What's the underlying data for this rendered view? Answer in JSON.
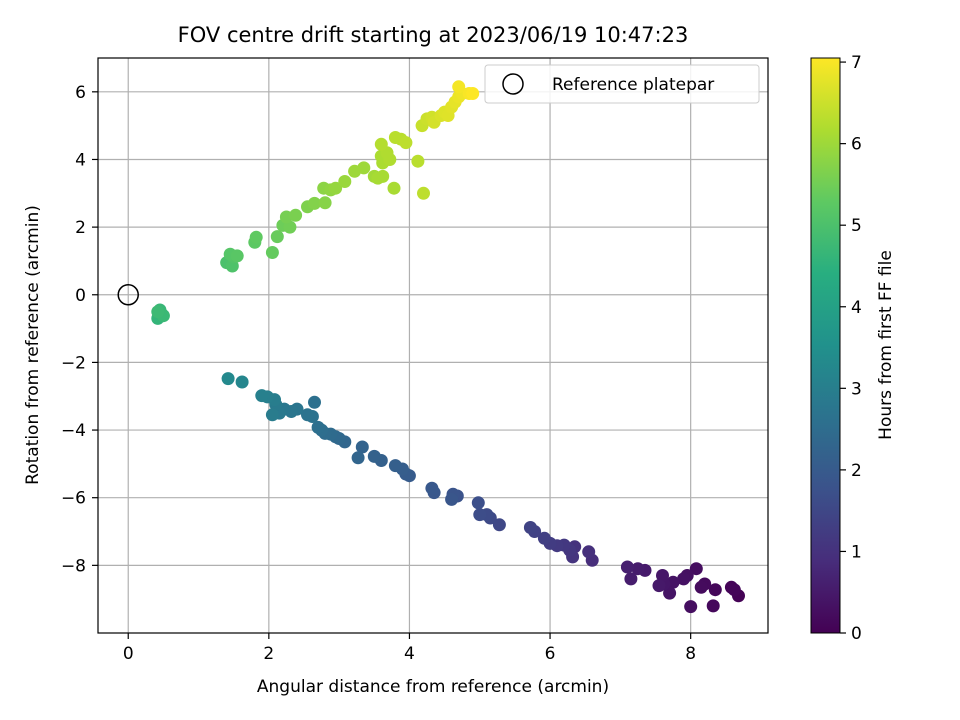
{
  "chart_data": {
    "type": "scatter",
    "title": "FOV centre drift starting at 2023/06/19 10:47:23",
    "xlabel": "Angular distance from reference (arcmin)",
    "ylabel": "Rotation from reference (arcmin)",
    "xlim": [
      -0.43,
      9.1
    ],
    "ylim": [
      -10.0,
      7.0
    ],
    "x_ticks": [
      0,
      2,
      4,
      6,
      8
    ],
    "y_ticks": [
      -8,
      -6,
      -4,
      -2,
      0,
      2,
      4,
      6
    ],
    "grid": true,
    "legend": {
      "position": "top-right",
      "entries": [
        "Reference platepar"
      ]
    },
    "reference_point": {
      "x": 0,
      "y": 0
    },
    "colorbar": {
      "label": "Hours from first FF file",
      "colormap": "viridis",
      "range": [
        0,
        7.05
      ],
      "ticks": [
        0,
        1,
        2,
        3,
        4,
        5,
        6,
        7
      ]
    },
    "points": [
      [
        8.68,
        -8.9,
        0.03
      ],
      [
        8.58,
        -8.65,
        0.06
      ],
      [
        8.62,
        -8.72,
        0.09
      ],
      [
        8.35,
        -8.72,
        0.12
      ],
      [
        8.32,
        -9.2,
        0.15
      ],
      [
        8.2,
        -8.55,
        0.18
      ],
      [
        8.15,
        -8.65,
        0.21
      ],
      [
        8.08,
        -8.1,
        0.24
      ],
      [
        8.0,
        -9.22,
        0.27
      ],
      [
        7.95,
        -8.3,
        0.3
      ],
      [
        7.9,
        -8.4,
        0.33
      ],
      [
        7.75,
        -8.5,
        0.36
      ],
      [
        7.7,
        -8.82,
        0.39
      ],
      [
        7.62,
        -8.55,
        0.42
      ],
      [
        7.6,
        -8.3,
        0.45
      ],
      [
        7.55,
        -8.6,
        0.48
      ],
      [
        7.35,
        -8.15,
        0.51
      ],
      [
        7.25,
        -8.1,
        0.54
      ],
      [
        7.15,
        -8.4,
        0.57
      ],
      [
        7.1,
        -8.05,
        0.6
      ],
      [
        6.6,
        -7.85,
        0.9
      ],
      [
        6.55,
        -7.6,
        0.95
      ],
      [
        6.35,
        -7.45,
        1.0
      ],
      [
        6.32,
        -7.75,
        1.05
      ],
      [
        6.28,
        -7.55,
        1.1
      ],
      [
        6.2,
        -7.4,
        1.15
      ],
      [
        6.1,
        -7.42,
        1.2
      ],
      [
        6.0,
        -7.35,
        1.25
      ],
      [
        5.92,
        -7.2,
        1.3
      ],
      [
        5.78,
        -7.0,
        1.35
      ],
      [
        5.72,
        -6.88,
        1.4
      ],
      [
        5.28,
        -6.8,
        1.5
      ],
      [
        5.15,
        -6.6,
        1.55
      ],
      [
        5.1,
        -6.5,
        1.6
      ],
      [
        5.0,
        -6.5,
        1.65
      ],
      [
        4.98,
        -6.15,
        1.7
      ],
      [
        4.68,
        -5.95,
        1.78
      ],
      [
        4.62,
        -5.9,
        1.82
      ],
      [
        4.6,
        -6.05,
        1.86
      ],
      [
        4.35,
        -5.85,
        1.9
      ],
      [
        4.32,
        -5.72,
        1.94
      ],
      [
        4.0,
        -5.35,
        2.0
      ],
      [
        3.95,
        -5.3,
        2.04
      ],
      [
        3.9,
        -5.15,
        2.08
      ],
      [
        3.8,
        -5.05,
        2.12
      ],
      [
        3.6,
        -4.9,
        2.16
      ],
      [
        3.5,
        -4.78,
        2.2
      ],
      [
        3.33,
        -4.5,
        2.24
      ],
      [
        3.27,
        -4.82,
        2.28
      ],
      [
        3.08,
        -4.35,
        2.32
      ],
      [
        3.0,
        -4.25,
        2.36
      ],
      [
        2.95,
        -4.2,
        2.4
      ],
      [
        2.88,
        -4.12,
        2.44
      ],
      [
        2.8,
        -4.1,
        2.48
      ],
      [
        2.75,
        -4.0,
        2.52
      ],
      [
        2.7,
        -3.92,
        2.56
      ],
      [
        2.65,
        -3.18,
        2.6
      ],
      [
        2.62,
        -3.6,
        2.64
      ],
      [
        2.55,
        -3.55,
        2.68
      ],
      [
        2.4,
        -3.38,
        2.72
      ],
      [
        2.32,
        -3.45,
        2.76
      ],
      [
        2.22,
        -3.38,
        2.8
      ],
      [
        2.15,
        -3.5,
        2.84
      ],
      [
        2.1,
        -3.25,
        2.88
      ],
      [
        2.05,
        -3.55,
        2.92
      ],
      [
        2.08,
        -3.1,
        2.96
      ],
      [
        1.98,
        -3.02,
        3.0
      ],
      [
        1.9,
        -2.98,
        3.05
      ],
      [
        1.62,
        -2.58,
        3.2
      ],
      [
        1.42,
        -2.48,
        3.3
      ],
      [
        0.42,
        -0.7,
        4.6
      ],
      [
        0.48,
        -0.58,
        4.64
      ],
      [
        0.45,
        -0.45,
        4.68
      ],
      [
        0.5,
        -0.62,
        4.72
      ],
      [
        0.42,
        -0.5,
        4.76
      ],
      [
        1.4,
        0.95,
        5.0
      ],
      [
        1.48,
        0.85,
        5.05
      ],
      [
        1.5,
        1.12,
        5.1
      ],
      [
        1.45,
        1.2,
        5.15
      ],
      [
        1.55,
        1.15,
        5.2
      ],
      [
        1.8,
        1.55,
        5.25
      ],
      [
        1.82,
        1.7,
        5.3
      ],
      [
        2.05,
        1.25,
        5.35
      ],
      [
        2.12,
        1.72,
        5.4
      ],
      [
        2.2,
        2.05,
        5.45
      ],
      [
        2.3,
        2.0,
        5.5
      ],
      [
        2.25,
        2.3,
        5.55
      ],
      [
        2.38,
        2.35,
        5.6
      ],
      [
        2.55,
        2.6,
        5.65
      ],
      [
        2.65,
        2.7,
        5.7
      ],
      [
        2.8,
        2.72,
        5.75
      ],
      [
        2.78,
        3.15,
        5.8
      ],
      [
        2.88,
        3.1,
        5.85
      ],
      [
        2.95,
        3.15,
        5.9
      ],
      [
        3.08,
        3.35,
        5.95
      ],
      [
        3.22,
        3.65,
        6.0
      ],
      [
        3.35,
        3.75,
        6.0
      ],
      [
        3.5,
        3.5,
        6.05
      ],
      [
        3.55,
        3.45,
        6.1
      ],
      [
        3.62,
        3.5,
        6.1
      ],
      [
        3.78,
        3.15,
        6.12
      ],
      [
        3.6,
        4.1,
        6.15
      ],
      [
        3.62,
        3.9,
        6.15
      ],
      [
        3.68,
        4.2,
        6.2
      ],
      [
        3.72,
        4.0,
        6.2
      ],
      [
        3.6,
        4.45,
        6.25
      ],
      [
        3.8,
        4.65,
        6.3
      ],
      [
        3.88,
        4.6,
        6.3
      ],
      [
        3.95,
        4.5,
        6.35
      ],
      [
        4.12,
        3.95,
        6.3
      ],
      [
        4.2,
        3.0,
        6.35
      ],
      [
        4.18,
        5.0,
        6.45
      ],
      [
        4.25,
        5.2,
        6.5
      ],
      [
        4.32,
        5.25,
        6.55
      ],
      [
        4.35,
        5.1,
        6.6
      ],
      [
        4.45,
        5.3,
        6.65
      ],
      [
        4.5,
        5.4,
        6.7
      ],
      [
        4.55,
        5.3,
        6.72
      ],
      [
        4.6,
        5.55,
        6.75
      ],
      [
        4.65,
        5.7,
        6.8
      ],
      [
        4.7,
        5.85,
        6.85
      ],
      [
        4.75,
        5.95,
        6.9
      ],
      [
        4.7,
        6.15,
        6.95
      ],
      [
        4.85,
        5.95,
        7.0
      ],
      [
        4.9,
        5.95,
        7.05
      ]
    ]
  }
}
